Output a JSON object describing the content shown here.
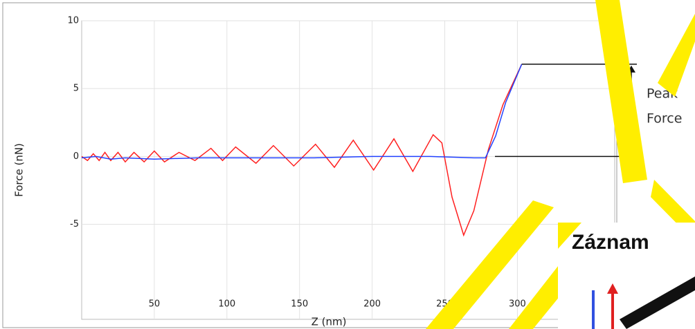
{
  "chart_data": {
    "type": "line",
    "xlabel": "Z (nm)",
    "ylabel": "Force (nN)",
    "xlim": [
      0,
      367
    ],
    "ylim": [
      -12,
      10
    ],
    "xticks": [
      50,
      100,
      150,
      200,
      250,
      300
    ],
    "yticks": [
      10,
      5,
      0,
      -5
    ],
    "grid": true,
    "series": [
      {
        "color": "#ff2020",
        "x": [
          0,
          4,
          8,
          12,
          16,
          20,
          25,
          30,
          36,
          43,
          50,
          57,
          67,
          78,
          89,
          97,
          106,
          120,
          132,
          146,
          161,
          174,
          187,
          201,
          215,
          228,
          242,
          248,
          255,
          263,
          270,
          280,
          290,
          303
        ],
        "values": [
          0,
          -0.3,
          0.2,
          -0.3,
          0.3,
          -0.3,
          0.3,
          -0.4,
          0.3,
          -0.4,
          0.4,
          -0.4,
          0.3,
          -0.3,
          0.6,
          -0.3,
          0.7,
          -0.5,
          0.8,
          -0.7,
          0.9,
          -0.8,
          1.2,
          -1.0,
          1.3,
          -1.1,
          1.6,
          1.0,
          -3.0,
          -5.8,
          -4.0,
          0.5,
          3.8,
          6.8
        ]
      },
      {
        "color": "#2040ff",
        "x": [
          0,
          10,
          20,
          30,
          50,
          80,
          120,
          160,
          200,
          240,
          270,
          278,
          285,
          292,
          303
        ],
        "values": [
          -0.1,
          0,
          -0.2,
          -0.1,
          -0.2,
          -0.1,
          -0.1,
          -0.1,
          0,
          0,
          -0.1,
          -0.1,
          1.5,
          4,
          6.8
        ]
      }
    ],
    "annotation": [
      "Peak",
      "Force"
    ]
  },
  "overlay": {
    "title": "Záznam"
  }
}
